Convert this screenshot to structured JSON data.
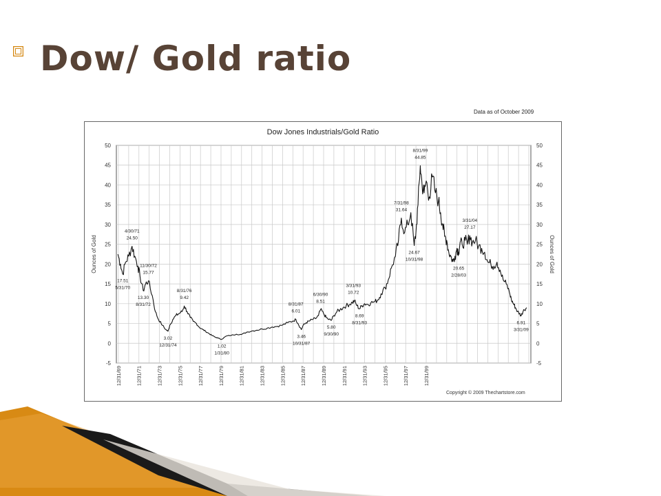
{
  "slide": {
    "title": "Dow/ Gold ratio",
    "bullet_icon": "square-bullet-icon",
    "accent_color": "#d4860e",
    "title_color": "#584336"
  },
  "chart_note": "Data as of October 2009",
  "copyright": "Copyright © 2009 Thechartstore.com",
  "chart_data": {
    "type": "line",
    "title": "Dow Jones Industrials/Gold Ratio",
    "ylabel": "Ounces of Gold",
    "ylabel_right": "Ounces of Gold",
    "xlabel": "",
    "ylim": [
      -5,
      50
    ],
    "yticks": [
      -5,
      0,
      5,
      10,
      15,
      20,
      25,
      30,
      35,
      40,
      45,
      50
    ],
    "xlim": [
      1969.8,
      2010.2
    ],
    "xtick_labels": [
      "12/31/69",
      "12/31/71",
      "12/31/73",
      "12/31/75",
      "12/31/77",
      "12/31/79",
      "12/31/81",
      "12/31/83",
      "12/31/85",
      "12/31/87",
      "12/31/89",
      "12/31/91",
      "12/31/93",
      "12/31/95",
      "12/31/97",
      "12/31/99",
      "12/31/01",
      "12/31/03",
      "12/31/05",
      "12/31/07",
      "12/31/09"
    ],
    "grid": true,
    "legend": "none",
    "series": [
      {
        "line_color": "#111111",
        "x": [
          1969.95,
          1970.2,
          1970.42,
          1970.7,
          1971.0,
          1971.33,
          1971.6,
          1971.9,
          1972.1,
          1972.42,
          1972.65,
          1972.92,
          1973.3,
          1973.6,
          1973.9,
          1974.3,
          1974.6,
          1974.83,
          1975.0,
          1975.3,
          1975.6,
          1975.9,
          1976.2,
          1976.42,
          1976.7,
          1977.0,
          1977.3,
          1977.6,
          1977.9,
          1978.2,
          1978.5,
          1978.8,
          1979.1,
          1979.4,
          1979.7,
          1980.08,
          1980.5,
          1981.0,
          1981.5,
          1982.0,
          1982.5,
          1983.0,
          1983.5,
          1984.0,
          1984.5,
          1985.0,
          1985.5,
          1986.0,
          1986.5,
          1987.0,
          1987.3,
          1987.5,
          1987.83,
          1988.0,
          1988.3,
          1988.6,
          1988.9,
          1989.2,
          1989.5,
          1989.7,
          1990.0,
          1990.25,
          1990.5,
          1990.75,
          1991.0,
          1991.3,
          1991.6,
          1991.9,
          1992.2,
          1992.5,
          1992.8,
          1993.0,
          1993.25,
          1993.5,
          1993.75,
          1994.0,
          1994.3,
          1994.6,
          1995.0,
          1995.3,
          1995.6,
          1996.0,
          1996.3,
          1996.6,
          1997.0,
          1997.3,
          1997.58,
          1997.9,
          1998.2,
          1998.5,
          1998.83,
          1999.0,
          1999.2,
          1999.42,
          1999.6,
          1999.8,
          2000.0,
          2000.3,
          2000.6,
          2000.9,
          2001.2,
          2001.4,
          2001.6,
          2001.8,
          2002.0,
          2002.2,
          2002.4,
          2002.6,
          2002.8,
          2003.0,
          2003.16,
          2003.3,
          2003.5,
          2003.8,
          2004.0,
          2004.25,
          2004.5,
          2004.8,
          2005.1,
          2005.4,
          2005.7,
          2006.0,
          2006.3,
          2006.6,
          2006.9,
          2007.2,
          2007.5,
          2007.8,
          2008.1,
          2008.3,
          2008.5,
          2008.7,
          2008.9,
          2009.1,
          2009.25,
          2009.5,
          2009.8
        ],
        "y": [
          22.5,
          20.0,
          17.51,
          20.5,
          22.0,
          24.5,
          22.0,
          19.5,
          17.0,
          13.3,
          15.0,
          15.77,
          12.0,
          8.0,
          6.0,
          4.5,
          3.5,
          3.02,
          4.5,
          6.0,
          7.0,
          7.5,
          8.0,
          9.42,
          8.0,
          6.5,
          5.5,
          5.0,
          4.0,
          3.5,
          3.0,
          2.5,
          2.0,
          1.6,
          1.3,
          1.02,
          1.8,
          2.0,
          2.3,
          2.2,
          2.8,
          3.1,
          3.3,
          3.6,
          3.8,
          4.1,
          4.3,
          4.6,
          5.2,
          5.6,
          6.01,
          5.0,
          3.46,
          4.5,
          5.2,
          5.6,
          6.0,
          6.2,
          7.0,
          8.51,
          7.5,
          6.5,
          6.0,
          5.8,
          7.0,
          8.0,
          8.5,
          9.0,
          9.5,
          9.8,
          10.3,
          10.72,
          9.5,
          8.69,
          9.5,
          10.0,
          9.8,
          10.2,
          10.5,
          11.0,
          12.5,
          14.0,
          16.0,
          19.0,
          22.0,
          26.0,
          31.64,
          28.0,
          30.0,
          33.0,
          24.67,
          28.0,
          35.0,
          44.85,
          40.0,
          38.0,
          41.0,
          37.0,
          42.0,
          38.0,
          36.0,
          33.0,
          30.0,
          27.0,
          26.0,
          23.0,
          22.0,
          20.65,
          22.0,
          24.0,
          23.0,
          25.5,
          25.0,
          26.0,
          25.0,
          27.17,
          25.5,
          26.0,
          24.5,
          24.0,
          23.0,
          20.5,
          20.0,
          19.5,
          20.5,
          18.5,
          16.0,
          15.0,
          13.0,
          11.0,
          10.0,
          9.0,
          8.0,
          7.5,
          6.91,
          8.5,
          9.0
        ]
      }
    ],
    "annotations": [
      {
        "text": "4/30/71",
        "x": 1971.33,
        "y": 24.5,
        "place": "above2"
      },
      {
        "text": "24.50",
        "x": 1971.33,
        "y": 24.5,
        "place": "above1"
      },
      {
        "text": "17.51",
        "x": 1970.42,
        "y": 17.51,
        "place": "below1"
      },
      {
        "text": "5/31/70",
        "x": 1970.42,
        "y": 17.51,
        "place": "below2"
      },
      {
        "text": "11/30/72",
        "x": 1972.92,
        "y": 15.77,
        "place": "above2"
      },
      {
        "text": "15.77",
        "x": 1972.92,
        "y": 15.77,
        "place": "above1"
      },
      {
        "text": "13.30",
        "x": 1972.42,
        "y": 13.3,
        "place": "below1"
      },
      {
        "text": "8/31/72",
        "x": 1972.42,
        "y": 13.3,
        "place": "below2"
      },
      {
        "text": "8/31/76",
        "x": 1976.42,
        "y": 9.42,
        "place": "above2"
      },
      {
        "text": "9.42",
        "x": 1976.42,
        "y": 9.42,
        "place": "above1"
      },
      {
        "text": "3.02",
        "x": 1974.83,
        "y": 3.02,
        "place": "below1"
      },
      {
        "text": "12/31/74",
        "x": 1974.83,
        "y": 3.02,
        "place": "below2"
      },
      {
        "text": "1.02",
        "x": 1980.08,
        "y": 1.02,
        "place": "below1"
      },
      {
        "text": "1/31/80",
        "x": 1980.08,
        "y": 1.02,
        "place": "below2"
      },
      {
        "text": "8/31/87",
        "x": 1987.3,
        "y": 6.01,
        "place": "above2"
      },
      {
        "text": "6.01",
        "x": 1987.3,
        "y": 6.01,
        "place": "above1"
      },
      {
        "text": "3.46",
        "x": 1987.83,
        "y": 3.46,
        "place": "below1"
      },
      {
        "text": "10/31/87",
        "x": 1987.83,
        "y": 3.46,
        "place": "below2"
      },
      {
        "text": "6/30/90",
        "x": 1989.7,
        "y": 8.51,
        "place": "above2"
      },
      {
        "text": "8.51",
        "x": 1989.7,
        "y": 8.51,
        "place": "above1"
      },
      {
        "text": "5.80",
        "x": 1990.75,
        "y": 5.8,
        "place": "below1"
      },
      {
        "text": "9/30/90",
        "x": 1990.75,
        "y": 5.8,
        "place": "below2"
      },
      {
        "text": "3/31/93",
        "x": 1992.9,
        "y": 10.72,
        "place": "above2"
      },
      {
        "text": "10.72",
        "x": 1992.9,
        "y": 10.72,
        "place": "above1"
      },
      {
        "text": "8.69",
        "x": 1993.5,
        "y": 8.69,
        "place": "below1"
      },
      {
        "text": "8/31/93",
        "x": 1993.5,
        "y": 8.69,
        "place": "below2"
      },
      {
        "text": "8/31/99",
        "x": 1999.42,
        "y": 44.85,
        "place": "above2"
      },
      {
        "text": "44.85",
        "x": 1999.42,
        "y": 44.85,
        "place": "above1"
      },
      {
        "text": "7/31/98",
        "x": 1997.58,
        "y": 31.64,
        "place": "above2"
      },
      {
        "text": "31.64",
        "x": 1997.58,
        "y": 31.64,
        "place": "above1"
      },
      {
        "text": "24.67",
        "x": 1998.83,
        "y": 24.67,
        "place": "below1"
      },
      {
        "text": "10/31/98",
        "x": 1998.83,
        "y": 24.67,
        "place": "below2"
      },
      {
        "text": "20.65",
        "x": 2003.16,
        "y": 20.65,
        "place": "below1"
      },
      {
        "text": "2/28/03",
        "x": 2003.16,
        "y": 20.65,
        "place": "below2"
      },
      {
        "text": "3/31/04",
        "x": 2004.25,
        "y": 27.17,
        "place": "above2"
      },
      {
        "text": "27.17",
        "x": 2004.25,
        "y": 27.17,
        "place": "above1"
      },
      {
        "text": "6.91",
        "x": 2009.25,
        "y": 6.91,
        "place": "below1"
      },
      {
        "text": "3/31/09",
        "x": 2009.25,
        "y": 6.91,
        "place": "below2"
      }
    ]
  }
}
